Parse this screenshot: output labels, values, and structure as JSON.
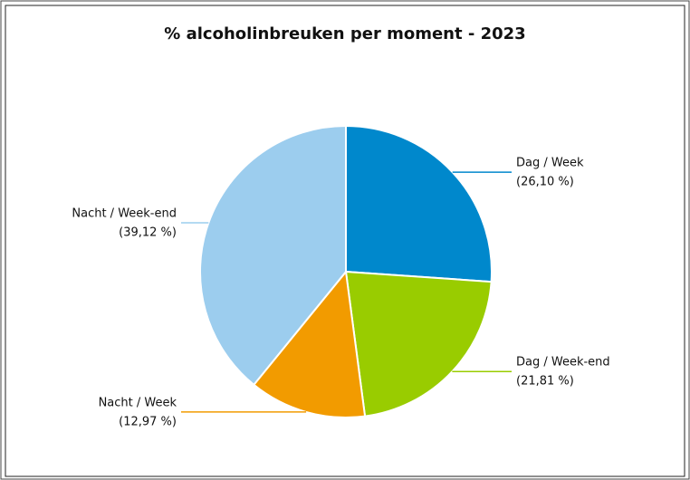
{
  "chart_data": {
    "type": "pie",
    "title": "% alcoholinbreuken per moment - 2023",
    "categories": [
      "Dag / Week",
      "Dag / Week-end",
      "Nacht / Week",
      "Nacht / Week-end"
    ],
    "values": [
      26.1,
      21.81,
      12.97,
      39.12
    ],
    "value_labels": [
      "(26,10 %)",
      "(21,81 %)",
      "(12,97 %)",
      "(39,12 %)"
    ],
    "colors": [
      "#0088cc",
      "#99cc00",
      "#f29b00",
      "#9ccdee"
    ]
  }
}
